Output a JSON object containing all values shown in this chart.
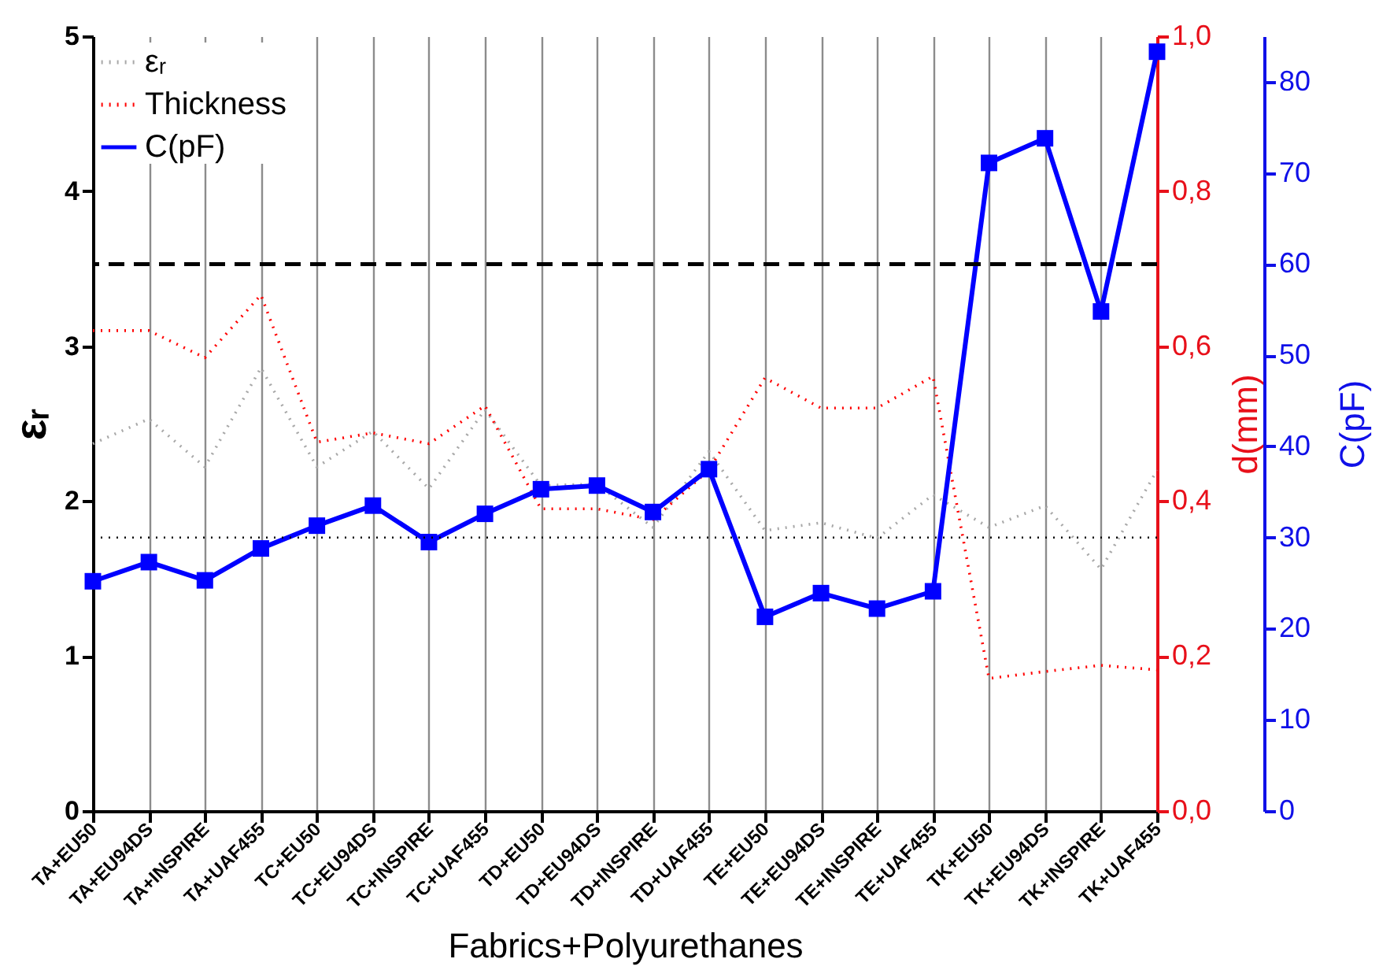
{
  "chart_data": {
    "type": "line",
    "xlabel": "Fabrics+Polyurethanes",
    "ylabel": "εᵣ",
    "y2label": "d(mm)",
    "y3label": "C(pF)",
    "categories": [
      "TA+EU50",
      "TA+EU94DS",
      "TA+INSPIRE",
      "TA+UAF455",
      "TC+EU50",
      "TC+EU94DS",
      "TC+INSPIRE",
      "TC+UAF455",
      "TD+EU50",
      "TD+EU94DS",
      "TD+INSPIRE",
      "TD+UAF455",
      "TE+EU50",
      "TE+EU94DS",
      "TE+INSPIRE",
      "TE+UAF455",
      "TK+EU50",
      "TK+EU94DS",
      "TK+INSPIRE",
      "TK+UAF455"
    ],
    "series": [
      {
        "name": "εᵣ",
        "color": "#a8a8a8",
        "line_style": "dotted",
        "values": [
          2.37,
          2.53,
          2.22,
          2.86,
          2.22,
          2.45,
          2.08,
          2.59,
          2.1,
          2.11,
          1.83,
          2.32,
          1.81,
          1.86,
          1.76,
          2.04,
          1.83,
          1.97,
          1.56,
          2.2
        ]
      },
      {
        "name": "Thickness",
        "color": "#ff0000",
        "line_style": "dotted",
        "axis": "y2",
        "values": [
          0.62,
          0.62,
          0.585,
          0.666,
          0.476,
          0.488,
          0.474,
          0.523,
          0.39,
          0.39,
          0.376,
          0.44,
          0.559,
          0.52,
          0.52,
          0.561,
          0.171,
          0.18,
          0.188,
          0.182
        ]
      },
      {
        "name": "C(pF)",
        "color": "#0000ff",
        "line_style": "solid",
        "marker": "square",
        "axis": "y3",
        "values": [
          25.2,
          27.3,
          25.3,
          28.8,
          31.3,
          33.5,
          29.5,
          32.6,
          35.3,
          35.7,
          32.8,
          37.5,
          21.3,
          23.9,
          22.2,
          24.1,
          71.1,
          73.8,
          54.8,
          83.3
        ]
      }
    ],
    "ylim": [
      0,
      5
    ],
    "yticks": [
      0,
      1,
      2,
      3,
      4,
      5
    ],
    "y2lim": [
      0,
      1
    ],
    "y2ticks": [
      {
        "value": 0,
        "label": "0,0"
      },
      {
        "value": 0.2,
        "label": "0,2"
      },
      {
        "value": 0.4,
        "label": "0,4"
      },
      {
        "value": 0.6,
        "label": "0,6"
      },
      {
        "value": 0.8,
        "label": "0,8"
      },
      {
        "value": 1,
        "label": "1,0"
      }
    ],
    "y3lim": [
      0,
      85
    ],
    "y3ticks": [
      0,
      10,
      20,
      30,
      40,
      50,
      60,
      70,
      80
    ],
    "ref_lines": [
      {
        "axis": "y3",
        "value": 60,
        "color": "#000000",
        "line_style": "dashed"
      },
      {
        "axis": "y3",
        "value": 30,
        "color": "#000000",
        "line_style": "dotted"
      }
    ],
    "grid": "x",
    "legend": "top left"
  }
}
